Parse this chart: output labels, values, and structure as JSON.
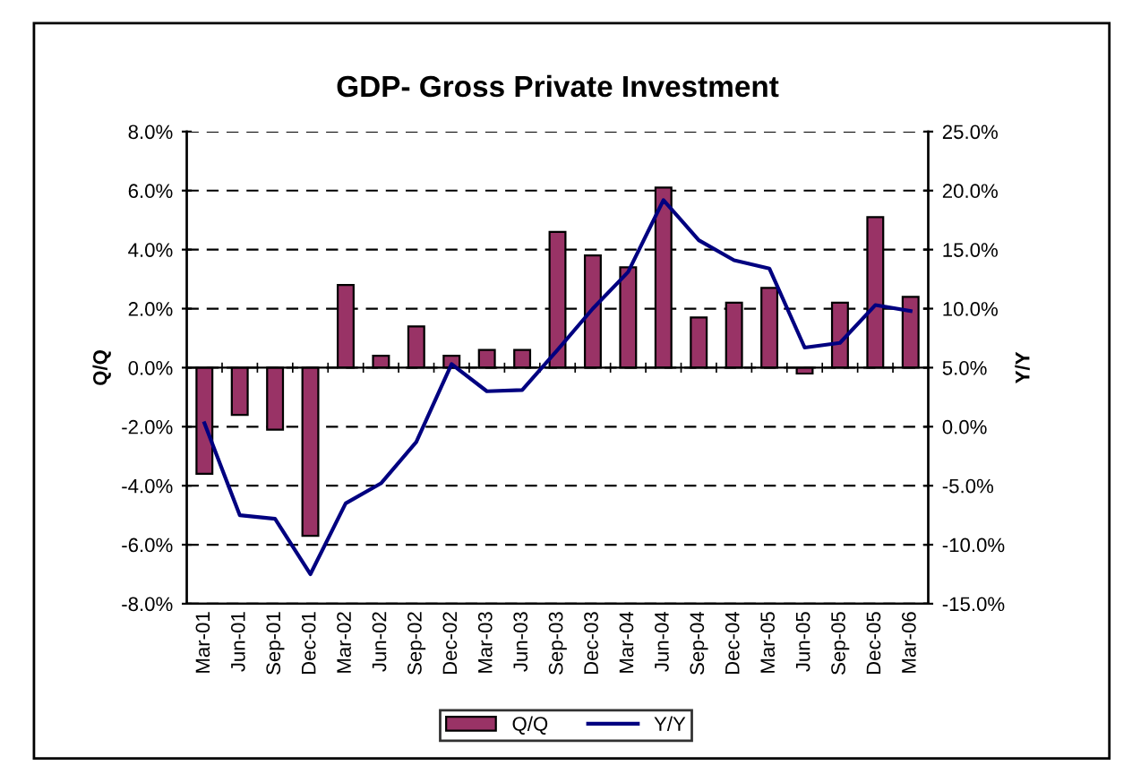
{
  "chart_data": {
    "type": "bar",
    "title": "GDP- Gross Private Investment",
    "ylabel": "Q/Q",
    "y2label": "Y/Y",
    "categories": [
      "Mar-01",
      "Jun-01",
      "Sep-01",
      "Dec-01",
      "Mar-02",
      "Jun-02",
      "Sep-02",
      "Dec-02",
      "Mar-03",
      "Jun-03",
      "Sep-03",
      "Dec-03",
      "Mar-04",
      "Jun-04",
      "Sep-04",
      "Dec-04",
      "Mar-05",
      "Jun-05",
      "Sep-05",
      "Dec-05",
      "Mar-06"
    ],
    "series": [
      {
        "name": "Q/Q",
        "type": "bar",
        "color": "#993366",
        "values": [
          -3.6,
          -1.6,
          -2.1,
          -5.7,
          2.8,
          0.4,
          1.4,
          0.4,
          0.6,
          0.6,
          4.6,
          3.8,
          3.4,
          6.1,
          1.7,
          2.2,
          2.7,
          -0.2,
          2.2,
          5.1,
          2.4
        ]
      },
      {
        "name": "Y/Y",
        "type": "line",
        "axis": "y2",
        "color": "#000080",
        "values": [
          0.3,
          -7.5,
          -7.8,
          -12.5,
          -6.5,
          -4.8,
          -1.3,
          5.3,
          3.0,
          3.1,
          6.5,
          10.0,
          13.1,
          19.2,
          15.8,
          14.1,
          13.4,
          6.7,
          7.1,
          10.3,
          9.8
        ]
      }
    ],
    "ylim": [
      -8,
      8
    ],
    "yticks": [
      {
        "value": -8,
        "label": "-8.0%"
      },
      {
        "value": -6,
        "label": "-6.0%"
      },
      {
        "value": -4,
        "label": "-4.0%"
      },
      {
        "value": -2,
        "label": "-2.0%"
      },
      {
        "value": 0,
        "label": "0.0%"
      },
      {
        "value": 2,
        "label": "2.0%"
      },
      {
        "value": 4,
        "label": "4.0%"
      },
      {
        "value": 6,
        "label": "6.0%"
      },
      {
        "value": 8,
        "label": "8.0%"
      }
    ],
    "y2lim": [
      -15,
      25
    ],
    "y2ticks": [
      {
        "value": -15,
        "label": "-15.0%"
      },
      {
        "value": -10,
        "label": "-10.0%"
      },
      {
        "value": -5,
        "label": "-5.0%"
      },
      {
        "value": 0,
        "label": "0.0%"
      },
      {
        "value": 5,
        "label": "5.0%"
      },
      {
        "value": 10,
        "label": "10.0%"
      },
      {
        "value": 15,
        "label": "15.0%"
      },
      {
        "value": 20,
        "label": "20.0%"
      },
      {
        "value": 25,
        "label": "25.0%"
      }
    ],
    "grid": "y",
    "legend": "bottom",
    "marker": "none",
    "line_style": "solid"
  }
}
